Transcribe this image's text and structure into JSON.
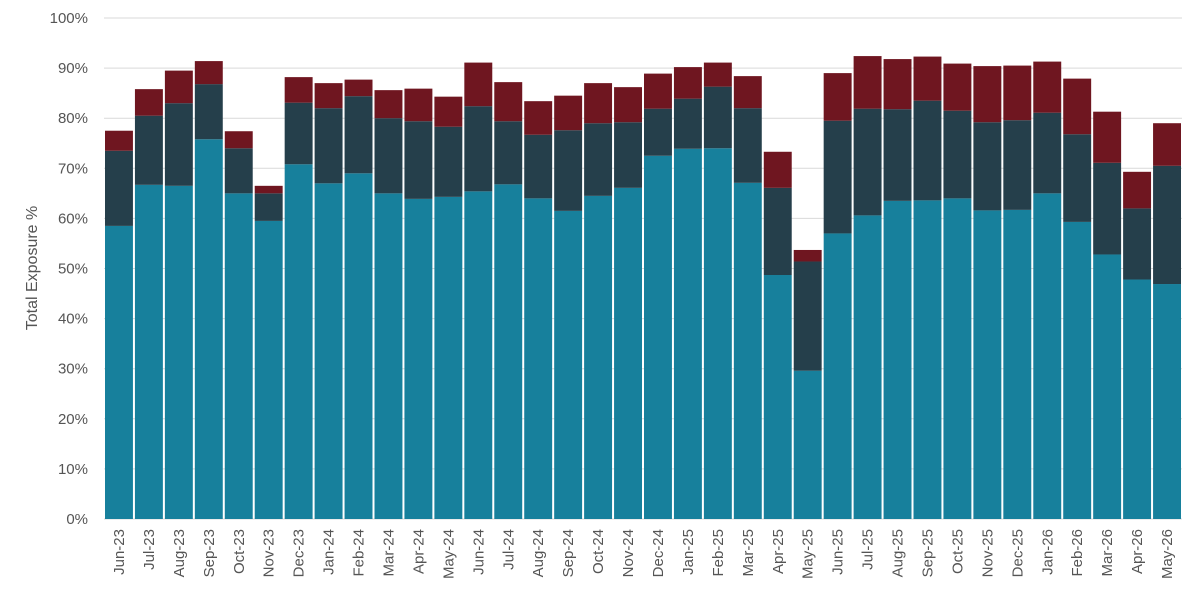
{
  "chart_data": {
    "type": "bar",
    "stacked": true,
    "ylabel": "Total Exposure %",
    "xlabel": "",
    "ylim": [
      0,
      100
    ],
    "yticks": [
      0,
      10,
      20,
      30,
      40,
      50,
      60,
      70,
      80,
      90,
      100
    ],
    "ytick_labels": [
      "0%",
      "10%",
      "20%",
      "30%",
      "40%",
      "50%",
      "60%",
      "70%",
      "80%",
      "90%",
      "100%"
    ],
    "grid": true,
    "legend": "none",
    "categories": [
      "Jun-23",
      "Jul-23",
      "Aug-23",
      "Sep-23",
      "Oct-23",
      "Nov-23",
      "Dec-23",
      "Jan-24",
      "Feb-24",
      "Mar-24",
      "Apr-24",
      "May-24",
      "Jun-24",
      "Jul-24",
      "Aug-24",
      "Sep-24",
      "Oct-24",
      "Nov-24",
      "Dec-24",
      "Jan-25",
      "Feb-25",
      "Mar-25",
      "Apr-25",
      "May-25",
      "Jun-25",
      "Jul-25",
      "Aug-25",
      "Sep-25",
      "Oct-25",
      "Nov-25",
      "Dec-25",
      "Jan-26",
      "Feb-26",
      "Mar-26",
      "Apr-26",
      "May-26"
    ],
    "series": [
      {
        "color": "#17809c",
        "values": [
          58.5,
          66.7,
          66.5,
          75.8,
          65,
          59.5,
          70.8,
          67,
          69,
          65,
          63.9,
          64.3,
          65.4,
          66.8,
          64,
          61.5,
          64.5,
          66.1,
          72.5,
          73.9,
          74,
          67.1,
          48.7,
          29.6,
          57,
          60.6,
          63.5,
          63.6,
          64,
          61.6,
          61.7,
          65,
          59.3,
          52.8,
          47.8,
          46.9
        ]
      },
      {
        "color": "#253f4b",
        "values": [
          15,
          13.8,
          16.5,
          11,
          9,
          5.5,
          12.3,
          15,
          15.4,
          15,
          15.5,
          14,
          17,
          12.6,
          12.7,
          16.1,
          14.5,
          13.1,
          9.4,
          10,
          12.3,
          14.9,
          17.4,
          21.8,
          22.5,
          21.3,
          18.3,
          19.9,
          17.5,
          17.6,
          17.9,
          16.1,
          17.5,
          18.3,
          14.2,
          23.6
        ]
      },
      {
        "color": "#6f1620",
        "values": [
          4,
          5.3,
          6.5,
          4.6,
          3.4,
          1.5,
          5.1,
          5,
          3.3,
          5.6,
          6.5,
          6,
          8.7,
          7.8,
          6.7,
          6.9,
          8,
          7,
          7,
          6.3,
          4.8,
          6.4,
          7.2,
          2.3,
          9.5,
          10.5,
          10,
          8.8,
          9.4,
          11.2,
          10.9,
          10.2,
          11.1,
          10.2,
          7.3,
          8.5
        ]
      }
    ]
  }
}
